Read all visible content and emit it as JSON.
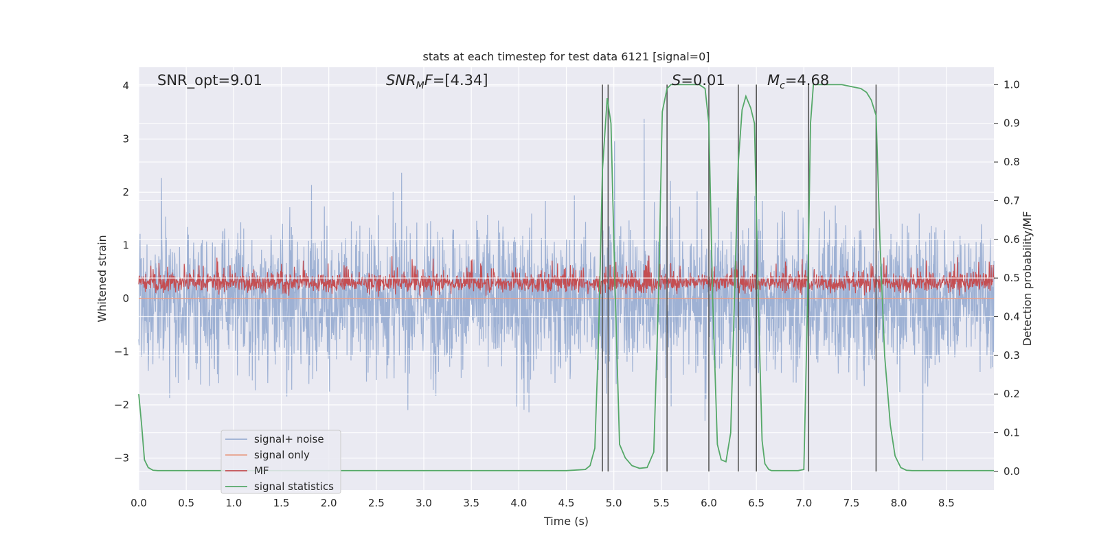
{
  "chart_data": {
    "type": "line",
    "title": "stats at each timestep for test data 6121 [signal=0]",
    "xlabel": "Time (s)",
    "ylabel": "Whitened strain",
    "ylabel_right": "Detection probability/MF",
    "xlim": [
      0.0,
      9.0
    ],
    "ylim": [
      -3.6,
      4.35
    ],
    "ylim_right": [
      -0.048,
      1.045
    ],
    "x_ticks": [
      "0.0",
      "0.5",
      "1.0",
      "1.5",
      "2.0",
      "2.5",
      "3.0",
      "3.5",
      "4.0",
      "4.5",
      "5.0",
      "5.5",
      "6.0",
      "6.5",
      "7.0",
      "7.5",
      "8.0",
      "8.5"
    ],
    "x_tick_values": [
      0.0,
      0.5,
      1.0,
      1.5,
      2.0,
      2.5,
      3.0,
      3.5,
      4.0,
      4.5,
      5.0,
      5.5,
      6.0,
      6.5,
      7.0,
      7.5,
      8.0,
      8.5
    ],
    "y_ticks": [
      "4",
      "3",
      "2",
      "1",
      "0",
      "−1",
      "−2",
      "−3"
    ],
    "y_tick_values": [
      4,
      3,
      2,
      1,
      0,
      -1,
      -2,
      -3
    ],
    "y_right_ticks": [
      "1.0",
      "0.9",
      "0.8",
      "0.7",
      "0.6",
      "0.5",
      "0.4",
      "0.3",
      "0.2",
      "0.1",
      "0.0"
    ],
    "y_right_tick_values": [
      1.0,
      0.9,
      0.8,
      0.7,
      0.6,
      0.5,
      0.4,
      0.3,
      0.2,
      0.1,
      0.0
    ],
    "annotations": [
      {
        "text": "SNR_opt=9.01"
      },
      {
        "prefix": "SNR",
        "sub": "M",
        "mid": "F",
        "suffix": "=[4.34]"
      },
      {
        "prefix": "S",
        "suffix": "=0.01"
      },
      {
        "prefix": "M",
        "sub": "c",
        "suffix": "=4.68"
      }
    ],
    "grid": true,
    "legend_position": "lower-left",
    "series": [
      {
        "name": "signal+ noise",
        "axis": "left",
        "color": "#9aaed2",
        "style": "dense noise, amplitude roughly within ±3, spikes to about ±3.6"
      },
      {
        "name": "signal only",
        "axis": "left",
        "color": "#e8a08a",
        "values_note": "flat at 0"
      },
      {
        "name": "MF",
        "axis": "left",
        "color": "#c44e52",
        "style": "dense trace between about 0.0 and 0.8, peaks near 1.0"
      },
      {
        "name": "signal statistics",
        "axis": "right",
        "color": "#55a868",
        "x": [
          0.0,
          0.03,
          0.06,
          0.1,
          0.15,
          0.2,
          0.3,
          0.5,
          1.0,
          2.0,
          3.0,
          4.0,
          4.5,
          4.7,
          4.75,
          4.8,
          4.84,
          4.88,
          4.93,
          4.97,
          5.01,
          5.06,
          5.12,
          5.19,
          5.27,
          5.35,
          5.42,
          5.47,
          5.51,
          5.56,
          5.6,
          5.65,
          5.72,
          5.8,
          5.9,
          5.96,
          6.0,
          6.04,
          6.09,
          6.13,
          6.18,
          6.23,
          6.27,
          6.31,
          6.35,
          6.39,
          6.44,
          6.48,
          6.52,
          6.56,
          6.59,
          6.63,
          6.66,
          6.7,
          6.76,
          6.84,
          6.94,
          7.0,
          7.04,
          7.07,
          7.1,
          7.14,
          7.2,
          7.4,
          7.6,
          7.66,
          7.71,
          7.76,
          7.8,
          7.85,
          7.91,
          7.96,
          8.02,
          8.08,
          8.14,
          8.2,
          8.3,
          8.5,
          9.0
        ],
        "values": [
          0.2,
          0.12,
          0.03,
          0.01,
          0.003,
          0.002,
          0.002,
          0.002,
          0.002,
          0.002,
          0.002,
          0.002,
          0.002,
          0.005,
          0.015,
          0.06,
          0.35,
          0.78,
          0.965,
          0.9,
          0.5,
          0.07,
          0.035,
          0.015,
          0.008,
          0.01,
          0.05,
          0.45,
          0.93,
          0.99,
          1.0,
          1.0,
          1.0,
          1.0,
          1.0,
          0.99,
          0.9,
          0.45,
          0.07,
          0.03,
          0.025,
          0.1,
          0.45,
          0.8,
          0.935,
          0.97,
          0.94,
          0.9,
          0.45,
          0.08,
          0.02,
          0.005,
          0.002,
          0.002,
          0.002,
          0.002,
          0.002,
          0.005,
          0.45,
          0.9,
          1.0,
          1.0,
          1.0,
          1.0,
          0.99,
          0.98,
          0.96,
          0.92,
          0.6,
          0.3,
          0.12,
          0.04,
          0.01,
          0.003,
          0.002,
          0.002,
          0.002,
          0.002,
          0.002
        ]
      }
    ],
    "vertical_lines_x": [
      4.88,
      4.94,
      5.56,
      6.0,
      6.31,
      6.5,
      7.05,
      7.76
    ]
  }
}
